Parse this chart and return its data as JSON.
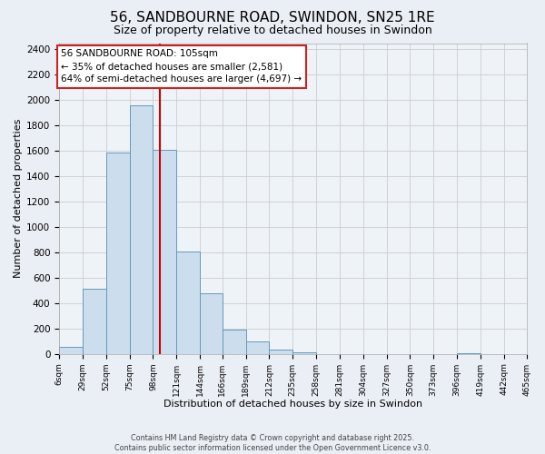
{
  "title": "56, SANDBOURNE ROAD, SWINDON, SN25 1RE",
  "subtitle": "Size of property relative to detached houses in Swindon",
  "xlabel": "Distribution of detached houses by size in Swindon",
  "ylabel": "Number of detached properties",
  "footer_lines": [
    "Contains HM Land Registry data © Crown copyright and database right 2025.",
    "Contains public sector information licensed under the Open Government Licence v3.0."
  ],
  "bar_edges": [
    6,
    29,
    52,
    75,
    98,
    121,
    144,
    166,
    189,
    212,
    235,
    258,
    281,
    304,
    327,
    350,
    373,
    396,
    419,
    442,
    465
  ],
  "bar_heights": [
    55,
    510,
    1590,
    1960,
    1610,
    805,
    480,
    190,
    95,
    35,
    10,
    0,
    0,
    0,
    0,
    0,
    0,
    5,
    0,
    0
  ],
  "bar_color": "#ccdded",
  "bar_edge_color": "#6699bb",
  "vline_color": "#cc0000",
  "vline_x": 105,
  "annotation_title": "56 SANDBOURNE ROAD: 105sqm",
  "annotation_line2": "← 35% of detached houses are smaller (2,581)",
  "annotation_line3": "64% of semi-detached houses are larger (4,697) →",
  "annotation_box_color": "#ffffff",
  "annotation_box_edge_color": "#cc2222",
  "ylim": [
    0,
    2450
  ],
  "yticks": [
    0,
    200,
    400,
    600,
    800,
    1000,
    1200,
    1400,
    1600,
    1800,
    2000,
    2200,
    2400
  ],
  "grid_color": "#cccccc",
  "bg_color": "#eaeff5",
  "plot_bg_color": "#eef3f8"
}
